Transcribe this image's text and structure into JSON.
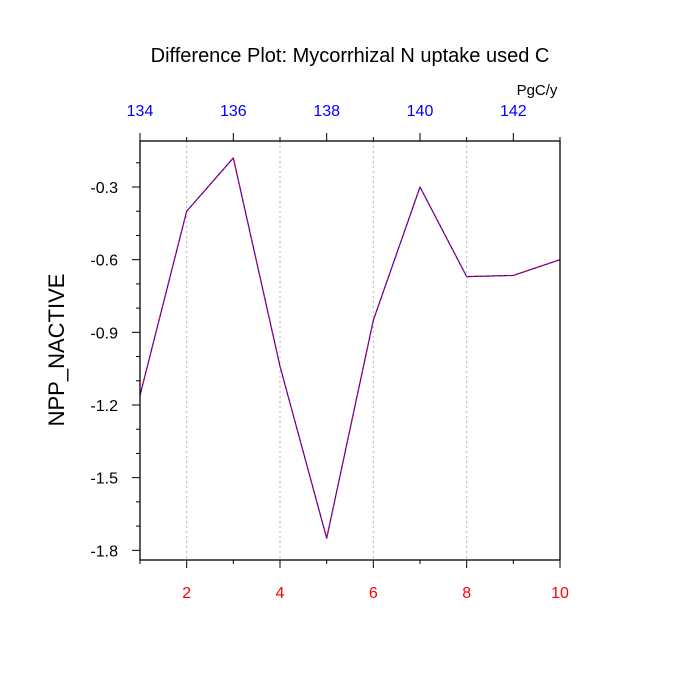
{
  "chart_data": {
    "type": "line",
    "title": "Difference Plot: Mycorrhizal N uptake used C",
    "ylabel": "NPP_NACTIVE",
    "top_axis_unit": "PgC/y",
    "xlim": [
      1,
      10
    ],
    "ylim": [
      -1.84,
      -0.11
    ],
    "x_ticks": [
      2,
      4,
      6,
      8,
      10
    ],
    "x_tick_labels": [
      "2",
      "4",
      "6",
      "8",
      "10"
    ],
    "y_ticks": [
      -1.8,
      -1.5,
      -1.2,
      -0.9,
      -0.6,
      -0.3
    ],
    "y_tick_labels": [
      "-1.8",
      "-1.5",
      "-1.2",
      "-0.9",
      "-0.6",
      "-0.3"
    ],
    "top_ticks": [
      1,
      3,
      5,
      7,
      9
    ],
    "top_tick_labels": [
      "134",
      "136",
      "138",
      "140",
      "142"
    ],
    "x_gridlines": [
      2,
      4,
      6,
      8
    ],
    "series": [
      {
        "x": [
          1,
          2,
          3,
          4,
          5,
          6,
          7,
          8,
          9,
          10
        ],
        "y": [
          -1.16,
          -0.4,
          -0.18,
          -1.04,
          -1.75,
          -0.85,
          -0.3,
          -0.67,
          -0.665,
          -0.6
        ]
      }
    ],
    "colors": {
      "line_primary": "#0000ff",
      "line_overlay": "#ff0000",
      "bottom_tick_labels": "#ff0000",
      "top_tick_labels": "#0000ff",
      "text": "#000000",
      "gridline": "#b0b0b0"
    }
  }
}
